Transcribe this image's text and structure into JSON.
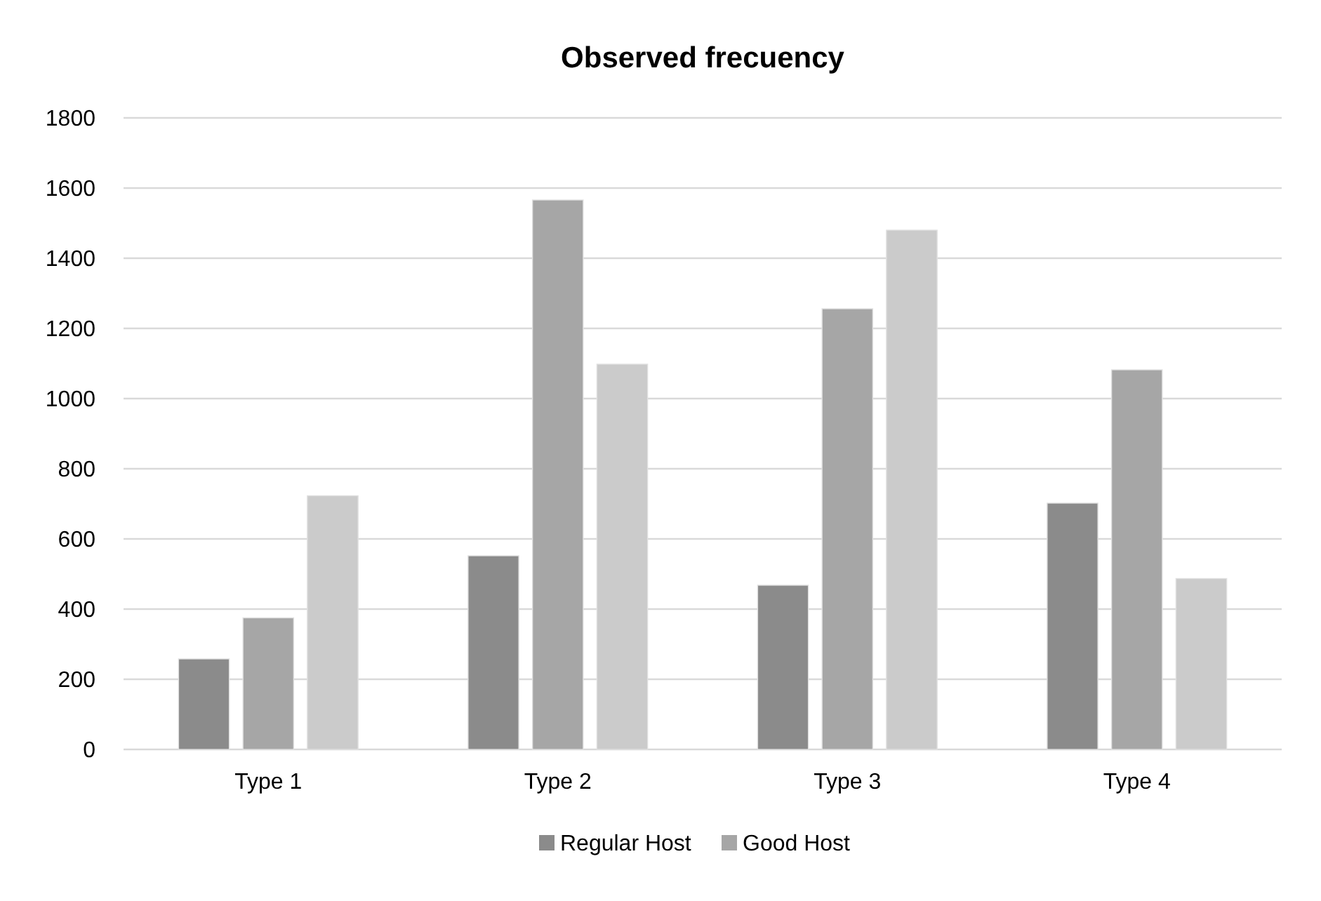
{
  "chart_data": {
    "type": "bar",
    "title": "Observed frecuency",
    "categories": [
      "Type 1",
      "Type 2",
      "Type 3",
      "Type 4"
    ],
    "series": [
      {
        "name": "Regular Host",
        "color": "#8b8b8b",
        "values": [
          258,
          552,
          468,
          702
        ]
      },
      {
        "name": "Good Host",
        "color": "#a6a6a6",
        "values": [
          375,
          1566,
          1256,
          1082
        ]
      },
      {
        "color": "#cbcbcb",
        "values": [
          723,
          1098,
          1480,
          487
        ]
      }
    ],
    "ylim": [
      0,
      1800
    ],
    "yticks": [
      0,
      200,
      400,
      600,
      800,
      1000,
      1200,
      1400,
      1600,
      1800
    ],
    "grid": "y",
    "legend": "bottom"
  }
}
